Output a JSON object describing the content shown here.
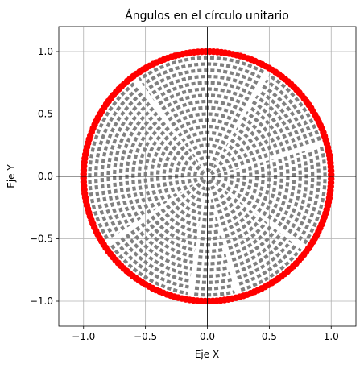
{
  "chart_data": {
    "type": "scatter",
    "title": "Ángulos en el círculo unitario",
    "xlabel": "Eje X",
    "ylabel": "Eje Y",
    "xlim": [
      -1.2,
      1.2
    ],
    "ylim": [
      -1.2,
      1.2
    ],
    "x_ticks": [
      -1.0,
      -0.5,
      0.0,
      0.5,
      1.0
    ],
    "y_ticks": [
      -1.0,
      -0.5,
      0.0,
      0.5,
      1.0
    ],
    "x_tick_labels": [
      "−1.0",
      "−0.5",
      "0.0",
      "0.5",
      "1.0"
    ],
    "y_tick_labels": [
      "−1.0",
      "−0.5",
      "0.0",
      "0.5",
      "1.0"
    ],
    "grid": true,
    "axis_lines_at_zero": true,
    "aspect": "equal",
    "unit_circle": {
      "radius": 1.0,
      "color": "#0000ff"
    },
    "series": [
      {
        "type": "dashed-arcs",
        "color": "#808080",
        "radii": [
          0.05,
          0.1,
          0.15,
          0.2,
          0.25,
          0.3,
          0.35,
          0.4,
          0.45,
          0.5,
          0.55,
          0.6,
          0.65,
          0.7,
          0.75,
          0.8,
          0.85,
          0.9,
          0.95,
          1.0
        ],
        "gap_angles_deg": [
          16,
          60,
          127,
          214,
          262,
          285,
          324
        ],
        "gap_width_deg": 3.2
      },
      {
        "type": "points-on-circle",
        "color": "#ff0000",
        "radius": 1.0,
        "count": 200
      }
    ]
  }
}
